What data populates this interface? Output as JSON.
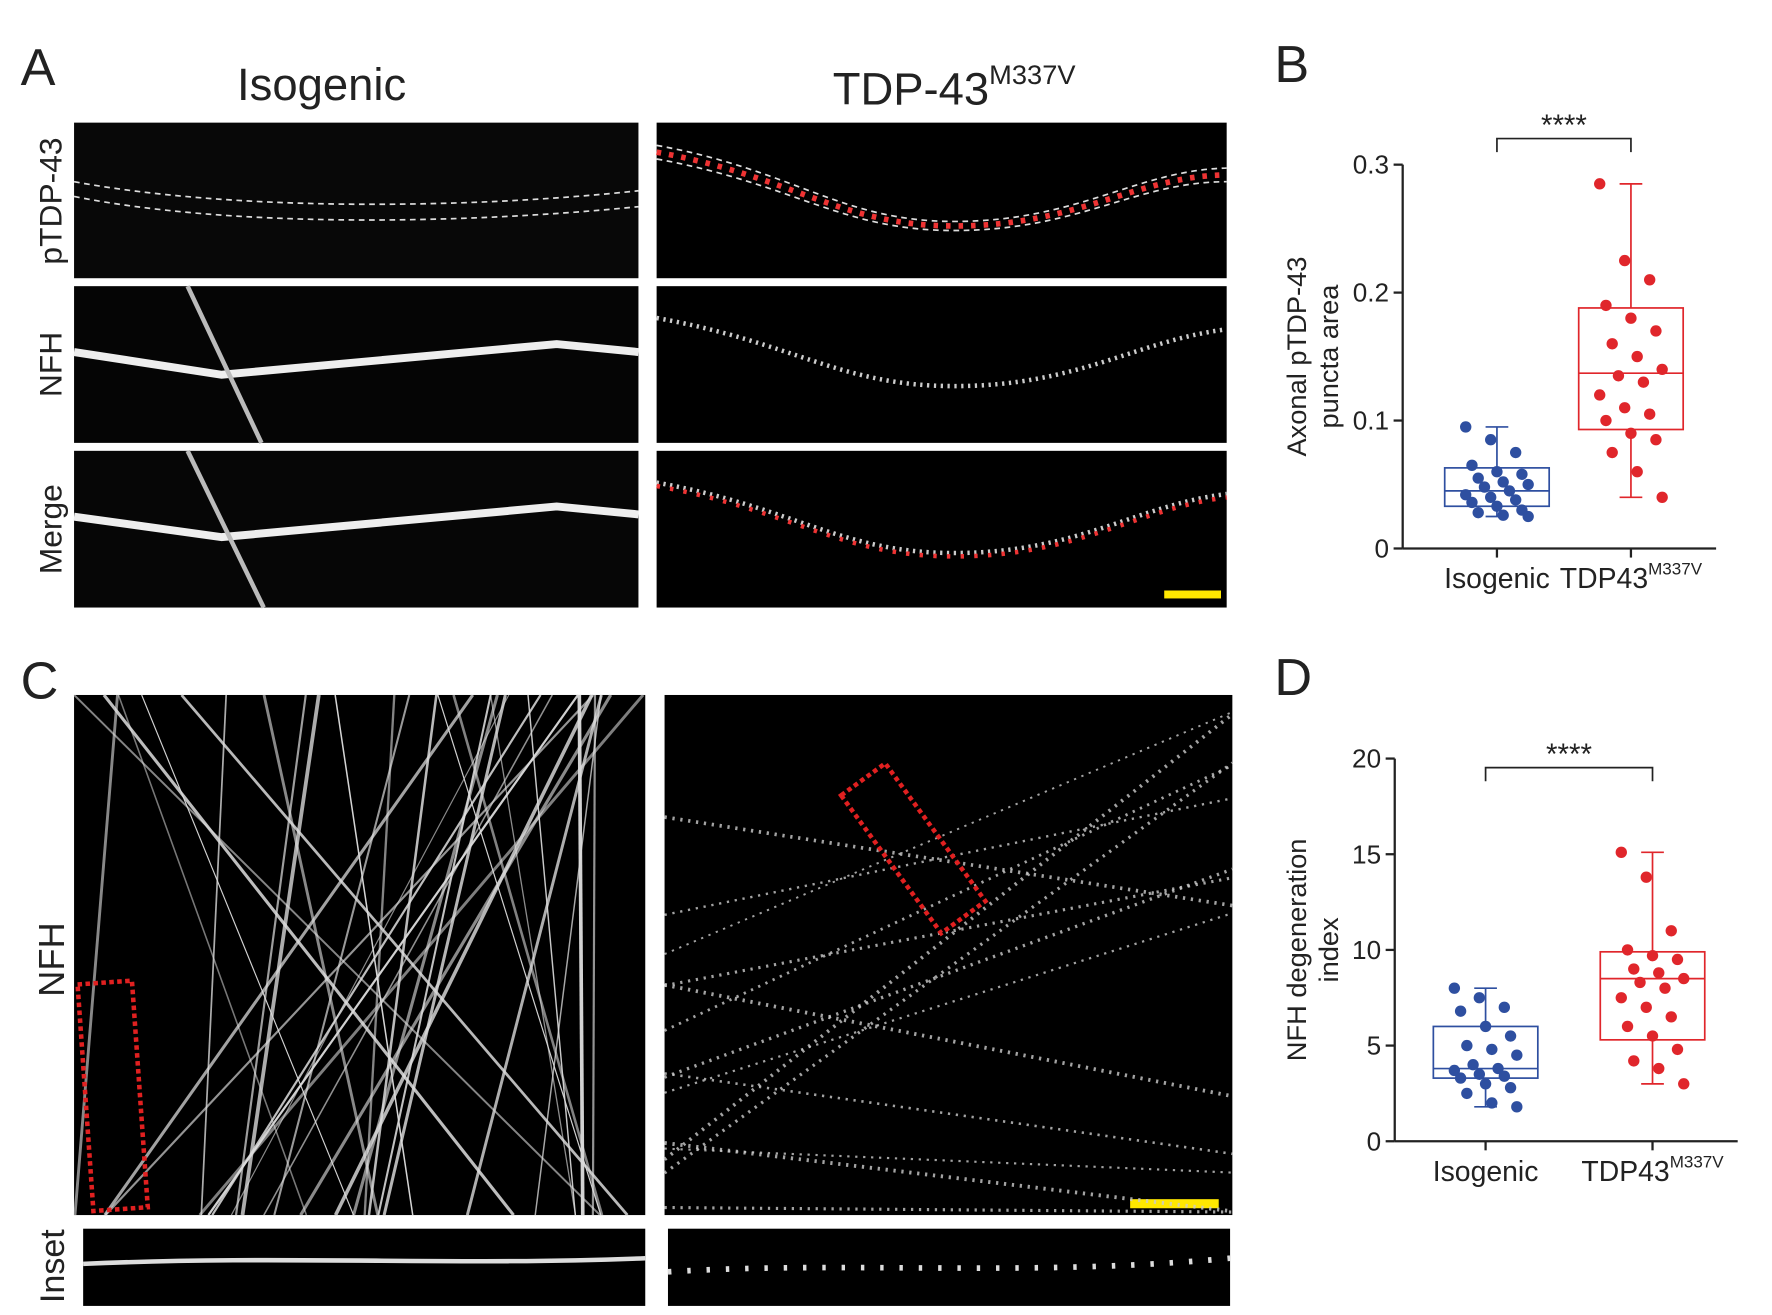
{
  "panels": {
    "a": "A",
    "b": "B",
    "c": "C",
    "d": "D"
  },
  "image_labels": {
    "col_left": "Isogenic",
    "col_right": "TDP-43",
    "col_right_sup": "M337V",
    "row_ptdp": "pTDP-43",
    "row_nfh": "NFH",
    "row_merge": "Merge",
    "c_nfh": "NFH",
    "c_inset": "Inset"
  },
  "chart_data": [
    {
      "type": "box",
      "ylabel": [
        "Axonal pTDP-43",
        "puncta area"
      ],
      "categories": [
        "Isogenic",
        "TDP43"
      ],
      "category_sup": [
        null,
        "M337V"
      ],
      "ylim": [
        0,
        0.3
      ],
      "yticks": [
        0,
        0.1,
        0.2,
        0.3
      ],
      "significance": "****",
      "series": [
        {
          "color": "#2e4fa0",
          "box": {
            "min": 0.025,
            "q1": 0.033,
            "median": 0.045,
            "q3": 0.063,
            "max": 0.095
          },
          "values": [
            0.095,
            0.085,
            0.075,
            0.065,
            0.06,
            0.058,
            0.055,
            0.052,
            0.05,
            0.048,
            0.045,
            0.042,
            0.04,
            0.038,
            0.036,
            0.033,
            0.03,
            0.028,
            0.026,
            0.025
          ]
        },
        {
          "color": "#e0262b",
          "box": {
            "min": 0.04,
            "q1": 0.093,
            "median": 0.137,
            "q3": 0.188,
            "max": 0.285
          },
          "values": [
            0.285,
            0.225,
            0.21,
            0.19,
            0.18,
            0.17,
            0.16,
            0.15,
            0.14,
            0.135,
            0.13,
            0.12,
            0.11,
            0.105,
            0.1,
            0.09,
            0.085,
            0.075,
            0.06,
            0.04
          ]
        }
      ]
    },
    {
      "type": "box",
      "ylabel": [
        "NFH degeneration",
        "index"
      ],
      "categories": [
        "Isogenic",
        "TDP43"
      ],
      "category_sup": [
        null,
        "M337V"
      ],
      "ylim": [
        0,
        20
      ],
      "yticks": [
        0,
        5,
        10,
        15,
        20
      ],
      "significance": "****",
      "series": [
        {
          "color": "#2e4fa0",
          "box": {
            "min": 1.8,
            "q1": 3.3,
            "median": 3.8,
            "q3": 6,
            "max": 8
          },
          "values": [
            8,
            7.5,
            7,
            6.8,
            6,
            5.5,
            5,
            4.8,
            4.5,
            4,
            3.8,
            3.7,
            3.5,
            3.4,
            3.3,
            3,
            2.8,
            2.5,
            2,
            1.8
          ]
        },
        {
          "color": "#e0262b",
          "box": {
            "min": 3,
            "q1": 5.3,
            "median": 8.5,
            "q3": 9.9,
            "max": 15.1
          },
          "values": [
            15.1,
            13.8,
            11,
            10,
            9.7,
            9.5,
            9,
            8.8,
            8.5,
            8.3,
            8,
            7.5,
            7,
            6.5,
            6,
            5.5,
            4.8,
            4.2,
            3.8,
            3
          ]
        }
      ]
    }
  ]
}
